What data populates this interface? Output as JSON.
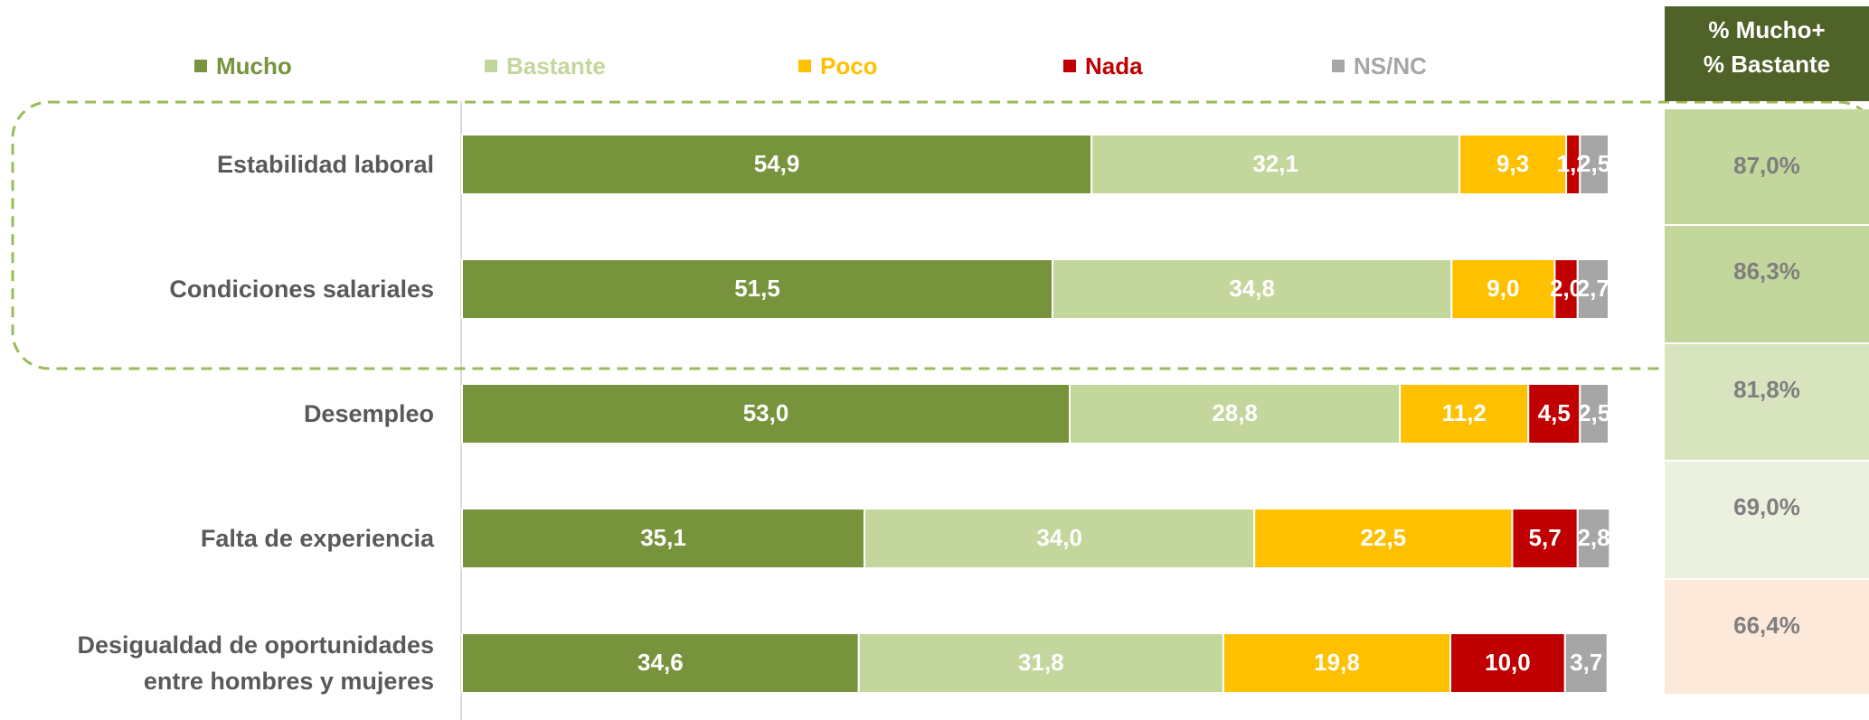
{
  "chart_data": {
    "type": "stacked_barh",
    "categories": [
      "Estabilidad laboral",
      "Condiciones salariales",
      "Desempleo",
      "Falta de experiencia",
      "Desigualdad de oportunidades entre hombres y mujeres"
    ],
    "xlim": [
      0,
      100
    ],
    "series": [
      {
        "name": "Mucho",
        "color": "#77933c",
        "values": [
          54.9,
          51.5,
          53.0,
          35.1,
          34.6
        ],
        "value_labels": [
          "54,9",
          "51,5",
          "53,0",
          "35,1",
          "34,6"
        ]
      },
      {
        "name": "Bastante",
        "color": "#c3d69b",
        "values": [
          32.1,
          34.8,
          28.8,
          34.0,
          31.8
        ],
        "value_labels": [
          "32,1",
          "34,8",
          "28,8",
          "34,0",
          "31,8"
        ]
      },
      {
        "name": "Poco",
        "color": "#ffc000",
        "values": [
          9.3,
          9.0,
          11.2,
          22.5,
          19.8
        ],
        "value_labels": [
          "9,3",
          "9,0",
          "11,2",
          "22,5",
          "19,8"
        ]
      },
      {
        "name": "Nada",
        "color": "#c00000",
        "values": [
          1.2,
          2.0,
          4.5,
          5.7,
          10.0
        ],
        "value_labels": [
          "1,2",
          "2,0",
          "4,5",
          "5,7",
          "10,0"
        ]
      },
      {
        "name": "NS/NC",
        "color": "#a6a6a6",
        "values": [
          2.5,
          2.7,
          2.5,
          2.8,
          3.7
        ],
        "value_labels": [
          "2,5",
          "2,7",
          "2,5",
          "2,8",
          "3,7"
        ]
      }
    ],
    "summary_column": {
      "header": [
        "% Mucho+",
        "% Bastante"
      ],
      "header_color": "#4f6228",
      "values": [
        87.0,
        86.3,
        81.8,
        69.0,
        66.4
      ],
      "value_labels": [
        "87,0%",
        "86,3%",
        "81,8%",
        "69,0%",
        "66,4%"
      ],
      "colors": [
        "#c3d69b",
        "#c3d69b",
        "#d7e4bd",
        "#ebf1de",
        "#fde9d9"
      ]
    }
  }
}
